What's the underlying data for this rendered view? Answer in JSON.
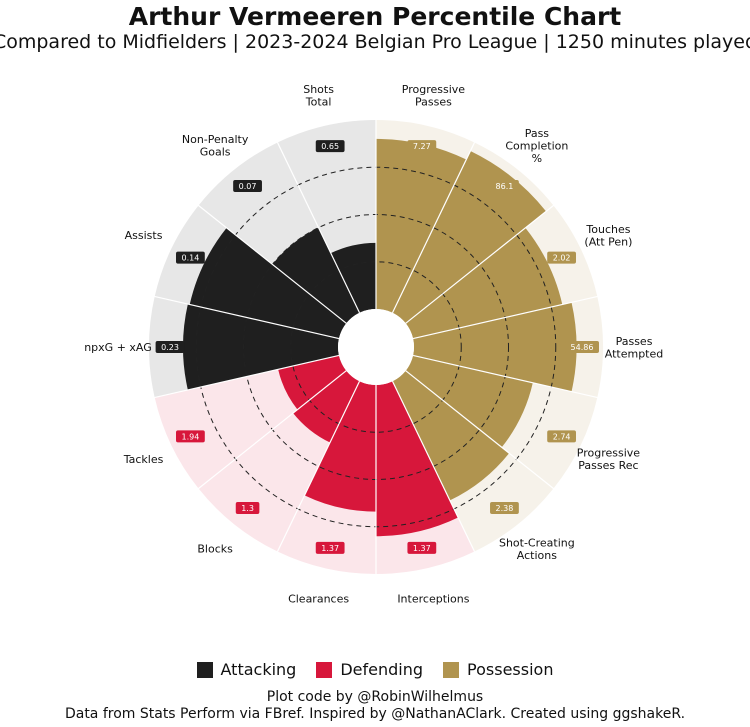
{
  "title": "Arthur Vermeeren Percentile Chart",
  "subtitle": "Compared to Midfielders | 2023-2024 Belgian Pro League | 1250 minutes played",
  "colors": {
    "Attacking": "#1f1f1f",
    "Defending": "#d7173b",
    "Possession": "#b0944f",
    "bg_Attacking": "#e7e7e7",
    "bg_Defending": "#fbe6ea",
    "bg_Possession": "#f6f2ea"
  },
  "legend": [
    {
      "label": "Attacking",
      "color": "#1f1f1f"
    },
    {
      "label": "Defending",
      "color": "#d7173b"
    },
    {
      "label": "Possession",
      "color": "#b0944f"
    }
  ],
  "chart_data": {
    "type": "polar-bar",
    "r_range": [
      0,
      100
    ],
    "gridlines": [
      25,
      50,
      75
    ],
    "series": [
      {
        "label": "Progressive\nPasses",
        "group": "Possession",
        "percentile": 90,
        "value": "7.27"
      },
      {
        "label": "Pass\nCompletion\n%",
        "group": "Possession",
        "percentile": 95,
        "value": "86.1"
      },
      {
        "label": "Touches\n(Att Pen)",
        "group": "Possession",
        "percentile": 81,
        "value": "2.02"
      },
      {
        "label": "Passes\nAttempted",
        "group": "Possession",
        "percentile": 86,
        "value": "54.86"
      },
      {
        "label": "Progressive\nPasses Rec",
        "group": "Possession",
        "percentile": 65,
        "value": "2.74"
      },
      {
        "label": "Shot-Creating\nActions",
        "group": "Possession",
        "percentile": 70,
        "value": "2.38"
      },
      {
        "label": "Interceptions",
        "group": "Defending",
        "percentile": 80,
        "value": "1.37"
      },
      {
        "label": "Clearances",
        "group": "Defending",
        "percentile": 67,
        "value": "1.37"
      },
      {
        "label": "Blocks",
        "group": "Defending",
        "percentile": 36,
        "value": "1.3"
      },
      {
        "label": "Tackles",
        "group": "Defending",
        "percentile": 33,
        "value": "1.94"
      },
      {
        "label": "npxG + xAG",
        "group": "Attacking",
        "percentile": 82,
        "value": "0.23"
      },
      {
        "label": "Assists",
        "group": "Attacking",
        "percentile": 81,
        "value": "0.14"
      },
      {
        "label": "Non-Penalty\nGoals",
        "group": "Attacking",
        "percentile": 50,
        "value": "0.07"
      },
      {
        "label": "Shots\nTotal",
        "group": "Attacking",
        "percentile": 35,
        "value": "0.65"
      }
    ]
  },
  "credits": {
    "line1": "Plot code by @RobinWilhelmus",
    "line2": "Data from Stats Perform via FBref. Inspired by @NathanAClark. Created using ggshakeR."
  }
}
